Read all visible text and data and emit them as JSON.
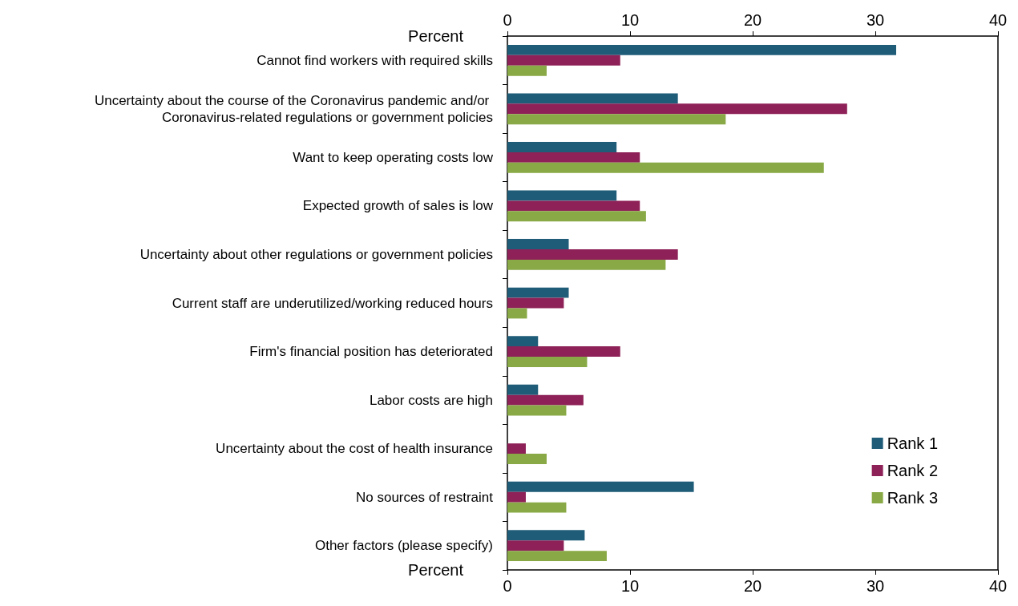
{
  "chart_data": {
    "type": "bar",
    "orientation": "horizontal",
    "xlabel": "Percent",
    "x2label": "Percent",
    "categories": [
      "Cannot find workers with required skills",
      "Uncertainty about the course of the Coronavirus pandemic and/or Coronavirus-related regulations or government policies",
      "Want to keep operating costs low",
      "Expected growth of sales is low",
      "Uncertainty about other regulations or government policies",
      "Current staff are underutilized/working reduced hours",
      "Firm's financial position has deteriorated",
      "Labor costs are high",
      "Uncertainty about the cost of health insurance",
      "No sources of restraint",
      "Other factors (please specify)"
    ],
    "series": [
      {
        "name": "Rank 1",
        "color": "#1f5c78",
        "values": [
          31.7,
          13.9,
          8.9,
          8.9,
          5.0,
          5.0,
          2.5,
          2.5,
          0,
          15.2,
          6.3
        ]
      },
      {
        "name": "Rank 2",
        "color": "#8e2157",
        "values": [
          9.2,
          27.7,
          10.8,
          10.8,
          13.9,
          4.6,
          9.2,
          6.2,
          1.5,
          1.5,
          4.6
        ]
      },
      {
        "name": "Rank 3",
        "color": "#88a945",
        "values": [
          3.2,
          17.8,
          25.8,
          11.3,
          12.9,
          1.6,
          6.5,
          4.8,
          3.2,
          4.8,
          8.1
        ]
      }
    ],
    "xlim": [
      0,
      40
    ],
    "xticks": [
      0,
      10,
      20,
      30,
      40
    ],
    "x2lim": [
      0,
      40
    ],
    "x2ticks": [
      0,
      10,
      20,
      30,
      40
    ],
    "legend": "bottom right",
    "grid": false
  }
}
